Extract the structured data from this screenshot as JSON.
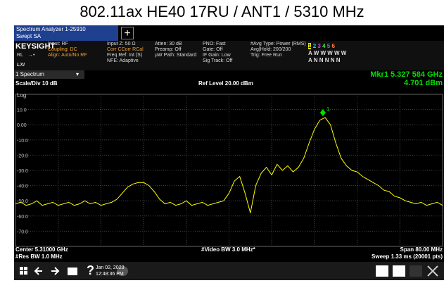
{
  "title": "802.11ax HE40 17RU / ANT1 / 5310 MHz",
  "tab": {
    "line1": "Spectrum Analyzer 1-25910",
    "line2": "Swept SA"
  },
  "add_button": "+",
  "info": {
    "logo": "KEYSIGHT",
    "rl": "RL",
    "lxi": "LXI",
    "col1": [
      "Input: RF",
      "Coupling: DC",
      "Align: Auto/No RF"
    ],
    "col2": [
      "Input Z: 50 Ω",
      "Corr CCorr RCal",
      "Freq Ref: Int (S)",
      "NFE: Adaptive"
    ],
    "col3": [
      "Atten: 30 dB",
      "Preamp: Off",
      "µW Path: Standard"
    ],
    "col4": [
      "PNO: Fast",
      "Gate: Off",
      "IF Gain: Low",
      "Sig Track: Off"
    ],
    "col5": [
      "#Avg Type: Power (RMS)",
      "Avg|Hold: 200/200",
      "Trig: Free Run"
    ],
    "traces": {
      "numbers": [
        "1",
        "2",
        "3",
        "4",
        "5",
        "6"
      ],
      "row2": "A W W W W W",
      "row3": "A N N N N N"
    }
  },
  "window": "1 Spectrum",
  "marker_readout": {
    "freq": "Mkr1  5.327 584 GHz",
    "level": "4.701 dBm"
  },
  "scale": "Scale/Div 10 dB",
  "ref_level": "Ref Level 20.00 dBm",
  "log": "Log",
  "footer": {
    "center": "Center 5.31000 GHz",
    "res_bw": "#Res BW 1.0 MHz",
    "video_bw": "#Video BW 3.0 MHz*",
    "span": "Span 80.00 MHz",
    "sweep": "Sweep 1.33 ms (20001 pts)"
  },
  "taskbar": {
    "help": "?",
    "date": "Jan 02, 2023",
    "time": "12:48:36 PM"
  },
  "chart_data": {
    "type": "line",
    "x": [
      5.27,
      5.271,
      5.272,
      5.273,
      5.274,
      5.275,
      5.276,
      5.277,
      5.278,
      5.279,
      5.28,
      5.281,
      5.282,
      5.283,
      5.284,
      5.285,
      5.286,
      5.287,
      5.288,
      5.289,
      5.29,
      5.291,
      5.292,
      5.293,
      5.294,
      5.295,
      5.296,
      5.297,
      5.298,
      5.299,
      5.3,
      5.301,
      5.302,
      5.303,
      5.304,
      5.305,
      5.306,
      5.307,
      5.308,
      5.309,
      5.31,
      5.311,
      5.312,
      5.313,
      5.314,
      5.315,
      5.316,
      5.317,
      5.318,
      5.319,
      5.32,
      5.321,
      5.322,
      5.323,
      5.324,
      5.325,
      5.326,
      5.327,
      5.328,
      5.329,
      5.33,
      5.331,
      5.332,
      5.333,
      5.334,
      5.335,
      5.336,
      5.337,
      5.338,
      5.339,
      5.34,
      5.341,
      5.342,
      5.343,
      5.344,
      5.345,
      5.346,
      5.347,
      5.348,
      5.349,
      5.35
    ],
    "series": [
      {
        "color": "#ffff00",
        "values": [
          -52,
          -51,
          -53,
          -52,
          -50,
          -53,
          -52,
          -51,
          -53,
          -52,
          -51,
          -53,
          -52,
          -50,
          -52,
          -51,
          -53,
          -52,
          -51,
          -49,
          -45,
          -41,
          -39,
          -38,
          -38,
          -40,
          -44,
          -49,
          -52,
          -51,
          -53,
          -52,
          -50,
          -53,
          -52,
          -51,
          -53,
          -52,
          -51,
          -50,
          -45,
          -37,
          -34,
          -45,
          -58,
          -40,
          -32,
          -28,
          -33,
          -26,
          -30,
          -27,
          -31,
          -28,
          -22,
          -12,
          -3,
          3,
          4.7,
          0,
          -12,
          -22,
          -27,
          -30,
          -31,
          -34,
          -36,
          -38,
          -40,
          -43,
          -44,
          -47,
          -48,
          -50,
          -51,
          -52,
          -51,
          -53,
          -52,
          -51,
          -53
        ]
      }
    ],
    "xlim": [
      5.27,
      5.35
    ],
    "ylim": [
      -80,
      20
    ],
    "yticks": [
      {
        "value": 10,
        "label": "10.0"
      },
      {
        "value": 0,
        "label": "0.00"
      },
      {
        "value": -10,
        "label": "-10.0"
      },
      {
        "value": -20,
        "label": "-20.0"
      },
      {
        "value": -30,
        "label": "-30.0"
      },
      {
        "value": -40,
        "label": "-40.0"
      },
      {
        "value": -50,
        "label": "-50.0"
      },
      {
        "value": -60,
        "label": "-60.0"
      },
      {
        "value": -70,
        "label": "-70.0"
      }
    ],
    "grid": true,
    "marker": {
      "label": "1",
      "x": 5.327584,
      "y": 4.701,
      "color": "#00e000"
    }
  }
}
